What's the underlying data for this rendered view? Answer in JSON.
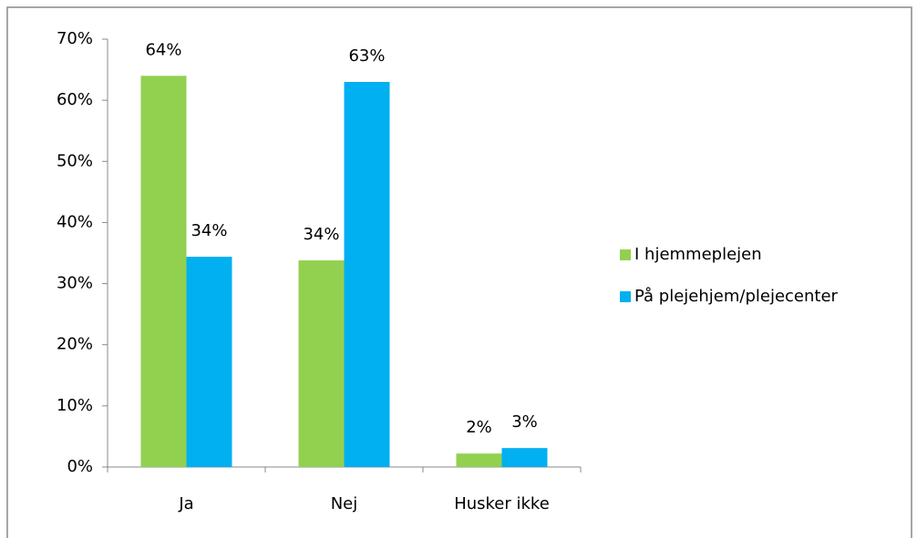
{
  "chart_data": {
    "type": "bar",
    "categories": [
      "Ja",
      "Nej",
      "Husker ikke"
    ],
    "series": [
      {
        "name": "I hjemmeplejen",
        "color": "#92d050",
        "values": [
          64,
          33.8,
          2.2
        ],
        "value_labels": [
          "64%",
          "34%",
          "2%"
        ]
      },
      {
        "name": "På plejehjem/plejecenter",
        "color": "#00b0f0",
        "values": [
          34.4,
          63,
          3.1
        ],
        "value_labels": [
          "34%",
          "63%",
          "3%"
        ]
      }
    ],
    "ylim": [
      0,
      70
    ],
    "yticks": [
      {
        "value": 0,
        "label": "0%"
      },
      {
        "value": 10,
        "label": "10%"
      },
      {
        "value": 20,
        "label": "20%"
      },
      {
        "value": 30,
        "label": "30%"
      },
      {
        "value": 40,
        "label": "40%"
      },
      {
        "value": 50,
        "label": "50%"
      },
      {
        "value": 60,
        "label": "60%"
      },
      {
        "value": 70,
        "label": "70%"
      }
    ],
    "legend": "right"
  }
}
